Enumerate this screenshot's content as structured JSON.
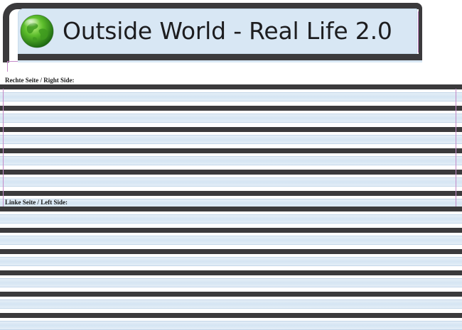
{
  "header": {
    "title": "Outside World - Real Life 2.0",
    "logo_icon": "globe-icon"
  },
  "sections": [
    {
      "label": "Rechte Seite / Right Side:"
    },
    {
      "label": "Linke Seite / Left Side:"
    }
  ],
  "colors": {
    "frame": "#3b3a3c",
    "panel": "#d8e7f4",
    "guide": "#c48ac8"
  }
}
